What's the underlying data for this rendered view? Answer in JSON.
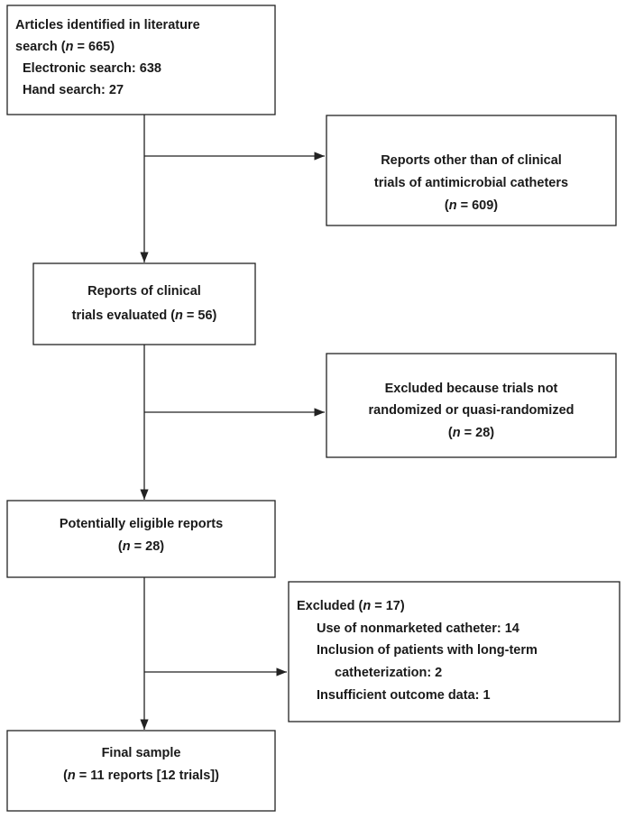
{
  "boxes": [
    {
      "lines": [
        "Articles identified in literature",
        [
          "search (",
          "n",
          " = 665)"
        ],
        "Electronic search: 638",
        "Hand search: 27"
      ]
    },
    {
      "lines": [
        "Reports other than of clinical",
        "trials of antimicrobial catheters",
        [
          "(",
          "n",
          " = 609)"
        ]
      ]
    },
    {
      "lines": [
        "Reports of clinical",
        [
          "trials evaluated (",
          "n",
          " = 56)"
        ]
      ]
    },
    {
      "lines": [
        "Excluded because trials not",
        "randomized or quasi-randomized",
        [
          "(",
          "n",
          " = 28)"
        ]
      ]
    },
    {
      "lines": [
        "Potentially eligible reports",
        [
          "(",
          "n",
          " = 28)"
        ]
      ]
    },
    {
      "lines": [
        [
          "Excluded (",
          "n",
          " = 17)"
        ],
        "Use of nonmarketed catheter: 14",
        "Inclusion of patients with long-term",
        "catheterization: 2",
        "Insufficient outcome data: 1"
      ]
    },
    {
      "lines": [
        "Final sample",
        [
          "(",
          "n",
          " = 11 reports [12 trials])"
        ]
      ]
    }
  ]
}
